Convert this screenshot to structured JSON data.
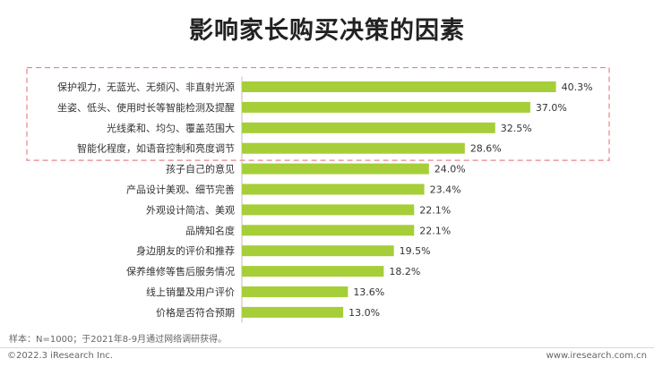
{
  "chart_data": {
    "type": "bar",
    "orientation": "horizontal",
    "title": "影响家长购买决策的因素",
    "categories": [
      "保护视力，无蓝光、无频闪、非直射光源",
      "坐姿、低头、使用时长等智能检测及提醒",
      "光线柔和、均匀、覆盖范围大",
      "智能化程度，如语音控制和亮度调节",
      "孩子自己的意见",
      "产品设计美观、细节完善",
      "外观设计简洁、美观",
      "品牌知名度",
      "身边朋友的评价和推荐",
      "保养维修等售后服务情况",
      "线上销量及用户评价",
      "价格是否符合预期"
    ],
    "values": [
      40.3,
      37.0,
      32.5,
      28.6,
      24.0,
      23.4,
      22.1,
      22.1,
      19.5,
      18.2,
      13.6,
      13.0
    ],
    "value_labels": [
      "40.3%",
      "37.0%",
      "32.5%",
      "28.6%",
      "24.0%",
      "23.4%",
      "22.1%",
      "22.1%",
      "19.5%",
      "18.2%",
      "13.6%",
      "13.0%"
    ],
    "unit": "%",
    "highlighted_categories": 4,
    "colors": {
      "bar": "#a6ce39",
      "highlight_border": "#e8838a",
      "axis": "#bfbfbf"
    }
  },
  "footnote": "样本：N=1000；于2021年8-9月通过网络调研获得。",
  "copyright": "©2022.3 iResearch Inc.",
  "website": "www.iresearch.com.cn"
}
